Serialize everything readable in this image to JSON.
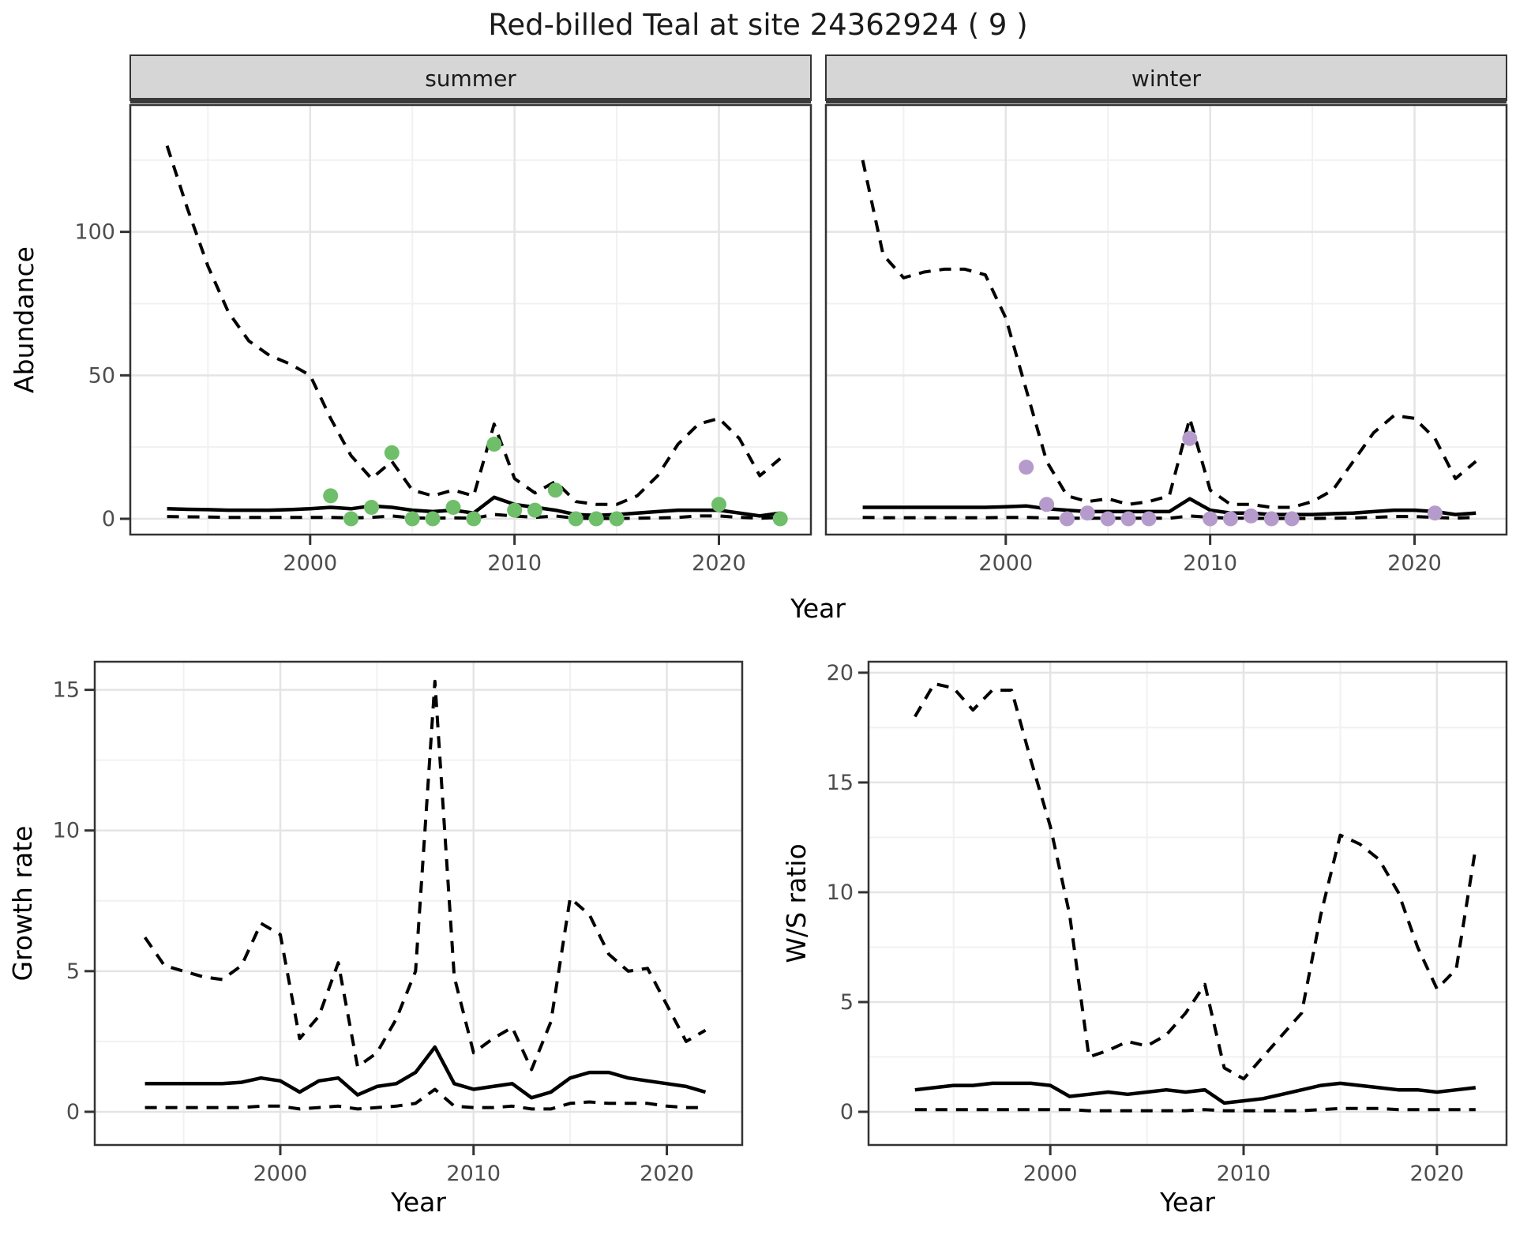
{
  "title": "Red-billed Teal at site 24362924 ( 9 )",
  "facets": {
    "summer": "summer",
    "winter": "winter"
  },
  "axes": {
    "abundance_label": "Abundance",
    "year_label_top": "Year",
    "year_label_bottom_left": "Year",
    "year_label_bottom_right": "Year",
    "growth_label": "Growth rate",
    "ws_label": "W/S ratio"
  },
  "colors": {
    "summer_point": "#6FBE6A",
    "winter_point": "#B59BCB",
    "line": "#000000",
    "strip_bg": "#D6D6D6",
    "strip_underline": "#3A3A3A",
    "panel_border": "#333333",
    "grid_major": "#E4E4E4",
    "grid_minor": "#F1F1F1",
    "tick_text": "#4D4D4D",
    "background": "#FFFFFF"
  },
  "chart_data": [
    {
      "type": "line",
      "facet": "summer",
      "title": "Abundance - summer",
      "xlabel": "Year",
      "ylabel": "Abundance",
      "grid": true,
      "legend": "none",
      "xlim": [
        1991.2,
        2024.5
      ],
      "ylim": [
        -5.5,
        144.2
      ],
      "xticks": [
        "2000",
        "2010",
        "2020"
      ],
      "yticks": [
        "0",
        "50",
        "100"
      ],
      "x": [
        1993,
        1994,
        1995,
        1996,
        1997,
        1998,
        1999,
        2000,
        2001,
        2002,
        2003,
        2004,
        2005,
        2006,
        2007,
        2008,
        2009,
        2010,
        2011,
        2012,
        2013,
        2014,
        2015,
        2016,
        2017,
        2018,
        2019,
        2020,
        2021,
        2022,
        2023
      ],
      "series": [
        {
          "name": "upper_95ci",
          "style": "dashed",
          "values": [
            130,
            108,
            88,
            72,
            62,
            57,
            54,
            50,
            35,
            22,
            14,
            20,
            10,
            8,
            10,
            8,
            33,
            14,
            9,
            13,
            6,
            5,
            5,
            8,
            15,
            26,
            33,
            35,
            28,
            15,
            21
          ]
        },
        {
          "name": "median",
          "style": "solid",
          "values": [
            3.5,
            3.3,
            3.2,
            3,
            3,
            3,
            3.2,
            3.5,
            4,
            3.5,
            4.5,
            4,
            3,
            2.5,
            3,
            2,
            7.5,
            5,
            4,
            3,
            1.5,
            1.2,
            1.5,
            2,
            2.5,
            3,
            3,
            3,
            2,
            1,
            2
          ]
        },
        {
          "name": "lower_95ci",
          "style": "dashed",
          "values": [
            0.8,
            0.7,
            0.6,
            0.5,
            0.5,
            0.5,
            0.5,
            0.5,
            0.5,
            0.3,
            0.5,
            1,
            0.3,
            0.2,
            0.3,
            0.2,
            1.5,
            1,
            0.5,
            1,
            0.2,
            0.1,
            0.1,
            0.2,
            0.3,
            0.5,
            1,
            1,
            0.5,
            0.2,
            0.5
          ]
        }
      ],
      "points": {
        "name": "observed_counts_summer",
        "x": [
          2001,
          2002,
          2003,
          2004,
          2005,
          2006,
          2007,
          2008,
          2009,
          2010,
          2011,
          2012,
          2013,
          2014,
          2015,
          2020,
          2023
        ],
        "y": [
          8,
          0,
          4,
          23,
          0,
          0,
          4,
          0,
          26,
          3,
          3,
          10,
          0,
          0,
          0,
          5,
          0
        ]
      }
    },
    {
      "type": "line",
      "facet": "winter",
      "title": "Abundance - winter",
      "xlabel": "Year",
      "ylabel": "Abundance",
      "grid": true,
      "legend": "none",
      "xlim": [
        1991.2,
        2024.5
      ],
      "ylim": [
        -5.5,
        144.2
      ],
      "xticks": [
        "2000",
        "2010",
        "2020"
      ],
      "yticks": [
        "0",
        "50",
        "100"
      ],
      "x": [
        1993,
        1994,
        1995,
        1996,
        1997,
        1998,
        1999,
        2000,
        2001,
        2002,
        2003,
        2004,
        2005,
        2006,
        2007,
        2008,
        2009,
        2010,
        2011,
        2012,
        2013,
        2014,
        2015,
        2016,
        2017,
        2018,
        2019,
        2020,
        2021,
        2022,
        2023
      ],
      "series": [
        {
          "name": "upper_95ci",
          "style": "dashed",
          "values": [
            125,
            92,
            84,
            86,
            87,
            87,
            85,
            70,
            45,
            20,
            8,
            6,
            7,
            5,
            6,
            8,
            35,
            10,
            5,
            5,
            4,
            4,
            6,
            10,
            20,
            30,
            36,
            35,
            28,
            14,
            20
          ]
        },
        {
          "name": "median",
          "style": "solid",
          "values": [
            4,
            4,
            4,
            4,
            4,
            4,
            4,
            4.2,
            4.5,
            3.5,
            3,
            2.5,
            2.5,
            2.5,
            2.5,
            2.5,
            7,
            3,
            2,
            2,
            1.5,
            1.5,
            1.5,
            1.8,
            2,
            2.5,
            3,
            3,
            2.5,
            1.5,
            2
          ]
        },
        {
          "name": "lower_95ci",
          "style": "dashed",
          "values": [
            0.5,
            0.4,
            0.4,
            0.4,
            0.4,
            0.4,
            0.4,
            0.5,
            0.5,
            0.3,
            0.2,
            0.2,
            0.2,
            0.2,
            0.2,
            0.2,
            1,
            0.5,
            0.2,
            0.2,
            0.1,
            0.1,
            0.1,
            0.2,
            0.3,
            0.5,
            0.8,
            0.8,
            0.5,
            0.2,
            0.5
          ]
        }
      ],
      "points": {
        "name": "observed_counts_winter",
        "x": [
          2001,
          2002,
          2003,
          2004,
          2005,
          2006,
          2007,
          2009,
          2010,
          2011,
          2012,
          2013,
          2014,
          2021
        ],
        "y": [
          18,
          5,
          0,
          2,
          0,
          0,
          0,
          28,
          0,
          0,
          1,
          0,
          0,
          2
        ]
      }
    },
    {
      "type": "line",
      "facet": null,
      "title": "Growth rate",
      "xlabel": "Year",
      "ylabel": "Growth rate",
      "grid": true,
      "legend": "none",
      "xlim": [
        1990.4,
        2023.9
      ],
      "ylim": [
        -1.18,
        16.0
      ],
      "xticks": [
        "2000",
        "2010",
        "2020"
      ],
      "yticks": [
        "0",
        "5",
        "10",
        "15"
      ],
      "x": [
        1993,
        1994,
        1995,
        1996,
        1997,
        1998,
        1999,
        2000,
        2001,
        2002,
        2003,
        2004,
        2005,
        2006,
        2007,
        2008,
        2009,
        2010,
        2011,
        2012,
        2013,
        2014,
        2015,
        2016,
        2017,
        2018,
        2019,
        2020,
        2021,
        2022
      ],
      "series": [
        {
          "name": "upper_95ci",
          "style": "dashed",
          "values": [
            6.2,
            5.2,
            5.0,
            4.8,
            4.7,
            5.2,
            6.7,
            6.3,
            2.6,
            3.4,
            5.3,
            1.6,
            2.1,
            3.3,
            5.0,
            15.3,
            4.8,
            2.1,
            2.6,
            3.0,
            1.5,
            3.2,
            7.6,
            7.0,
            5.6,
            5.0,
            5.1,
            3.8,
            2.5,
            2.9
          ]
        },
        {
          "name": "median",
          "style": "solid",
          "values": [
            1,
            1,
            1,
            1,
            1,
            1.05,
            1.2,
            1.1,
            0.7,
            1.1,
            1.2,
            0.6,
            0.9,
            1,
            1.4,
            2.3,
            1,
            0.8,
            0.9,
            1,
            0.5,
            0.7,
            1.2,
            1.4,
            1.4,
            1.2,
            1.1,
            1,
            0.9,
            0.7
          ]
        },
        {
          "name": "lower_95ci",
          "style": "dashed",
          "values": [
            0.15,
            0.15,
            0.15,
            0.15,
            0.15,
            0.15,
            0.2,
            0.2,
            0.1,
            0.15,
            0.2,
            0.1,
            0.15,
            0.2,
            0.3,
            0.8,
            0.2,
            0.15,
            0.15,
            0.2,
            0.1,
            0.1,
            0.3,
            0.35,
            0.3,
            0.3,
            0.3,
            0.2,
            0.15,
            0.15
          ]
        }
      ],
      "points": null
    },
    {
      "type": "line",
      "facet": null,
      "title": "W/S ratio",
      "xlabel": "Year",
      "ylabel": "W/S ratio",
      "grid": true,
      "legend": "none",
      "xlim": [
        1990.6,
        2023.6
      ],
      "ylim": [
        -1.51,
        20.5
      ],
      "xticks": [
        "2000",
        "2010",
        "2020"
      ],
      "yticks": [
        "0",
        "5",
        "10",
        "15",
        "20"
      ],
      "x": [
        1993,
        1994,
        1995,
        1996,
        1997,
        1998,
        1999,
        2000,
        2001,
        2002,
        2003,
        2004,
        2005,
        2006,
        2007,
        2008,
        2009,
        2010,
        2011,
        2012,
        2013,
        2014,
        2015,
        2016,
        2017,
        2018,
        2019,
        2020,
        2021,
        2022
      ],
      "series": [
        {
          "name": "upper_95ci",
          "style": "dashed",
          "values": [
            18,
            19.5,
            19.3,
            18.3,
            19.2,
            19.2,
            16,
            13,
            9,
            2.5,
            2.8,
            3.2,
            3,
            3.5,
            4.5,
            5.8,
            2,
            1.5,
            2.5,
            3.5,
            4.5,
            9,
            12.6,
            12.2,
            11.5,
            10,
            7.5,
            5.6,
            6.5,
            12
          ]
        },
        {
          "name": "median",
          "style": "solid",
          "values": [
            1,
            1.1,
            1.2,
            1.2,
            1.3,
            1.3,
            1.3,
            1.2,
            0.7,
            0.8,
            0.9,
            0.8,
            0.9,
            1,
            0.9,
            1,
            0.4,
            0.5,
            0.6,
            0.8,
            1,
            1.2,
            1.3,
            1.2,
            1.1,
            1,
            1,
            0.9,
            1,
            1.1
          ]
        },
        {
          "name": "lower_95ci",
          "style": "dashed",
          "values": [
            0.1,
            0.1,
            0.1,
            0.1,
            0.1,
            0.1,
            0.1,
            0.1,
            0.1,
            0.05,
            0.05,
            0.05,
            0.05,
            0.05,
            0.05,
            0.1,
            0.05,
            0.05,
            0.05,
            0.05,
            0.05,
            0.1,
            0.15,
            0.15,
            0.15,
            0.1,
            0.1,
            0.1,
            0.1,
            0.1
          ]
        }
      ],
      "points": null
    }
  ]
}
